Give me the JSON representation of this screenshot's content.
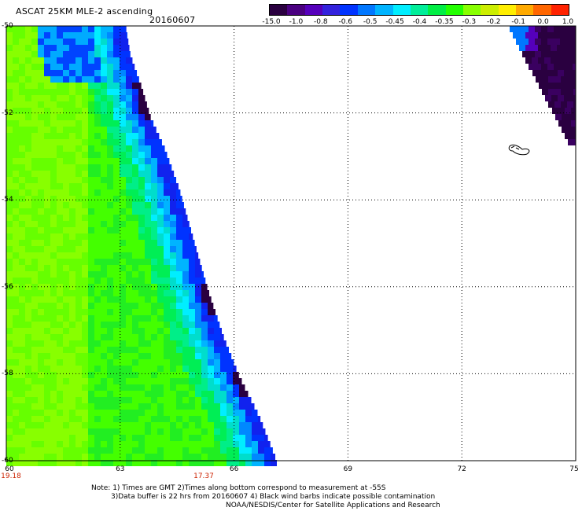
{
  "header": {
    "title": "ASCAT 25KM MLE-2 ascending",
    "date": "20160607"
  },
  "colorbar": {
    "labels": [
      "-15.0",
      "-1.0",
      "-0.8",
      "-0.6",
      "-0.5",
      "-0.45",
      "-0.4",
      "-0.35",
      "-0.3",
      "-0.2",
      "-0.1",
      "0.0",
      "1.0"
    ],
    "colors": [
      "#2a0040",
      "#4a0080",
      "#5500bb",
      "#3322dd",
      "#0033ff",
      "#0077ff",
      "#00b4ff",
      "#00eeff",
      "#00ee99",
      "#00ee44",
      "#22ff00",
      "#88ff00",
      "#ccee00",
      "#ffee00",
      "#ffaa00",
      "#ff6600",
      "#ff2200"
    ]
  },
  "axes": {
    "lat_labels": [
      "-50",
      "-52",
      "-54",
      "-56",
      "-58",
      "-60"
    ],
    "lon_labels": [
      "60",
      "63",
      "66",
      "69",
      "72",
      "75"
    ],
    "time_labels": [
      {
        "text": "19.18",
        "lon": "60"
      },
      {
        "text": "17.37",
        "lon": "65.2"
      }
    ]
  },
  "notes": {
    "line1": "Note: 1) Times are GMT 2)Times along bottom correspond to measurement at -55S",
    "line2": "3)Data buffer is 22 hrs from 20160607 4) Black wind barbs indicate possible contamination",
    "line3": "NOAA/NESDIS/Center for Satellite Applications and Research"
  }
}
